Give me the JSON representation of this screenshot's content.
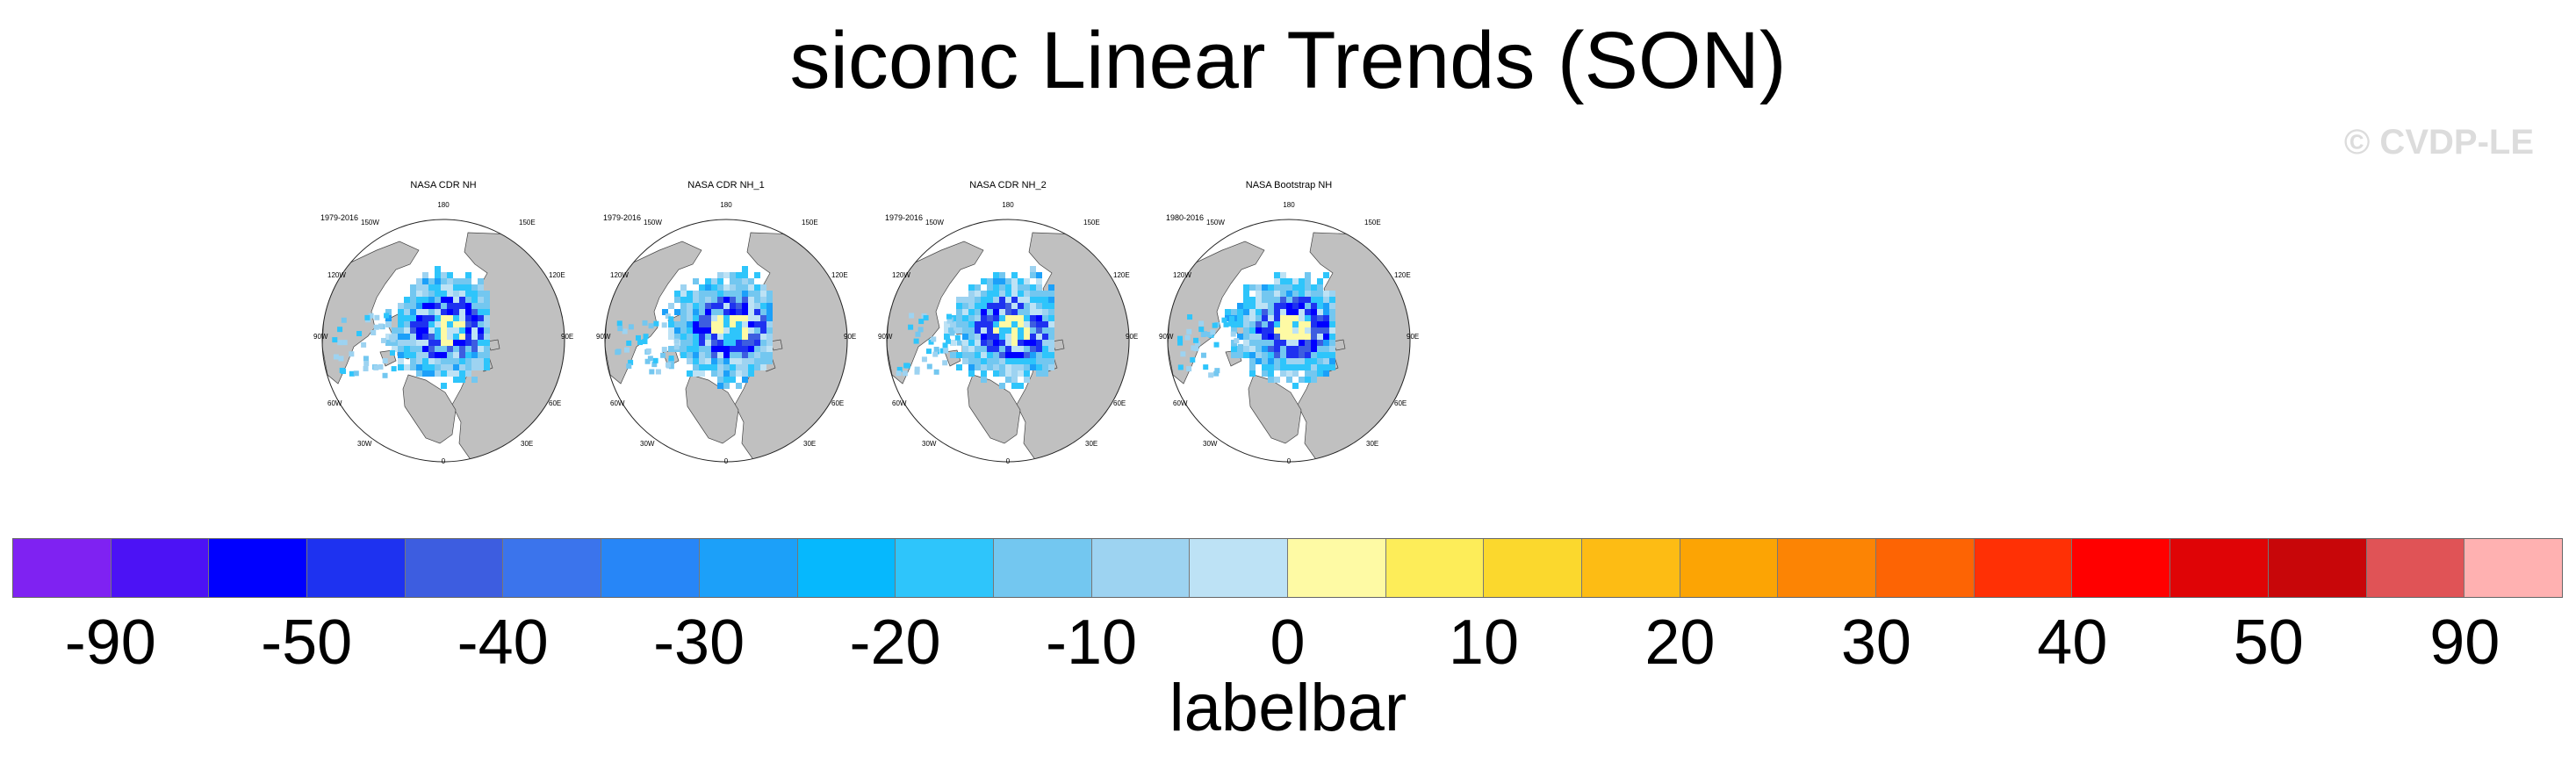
{
  "title": "siconc Linear Trends (SON)",
  "credit": "© CVDP-LE",
  "panels": [
    {
      "title": "NASA CDR NH",
      "years": "1979-2016"
    },
    {
      "title": "NASA CDR NH_1",
      "years": "1979-2016"
    },
    {
      "title": "NASA CDR NH_2",
      "years": "1979-2016"
    },
    {
      "title": "NASA Bootstrap NH",
      "years": "1980-2016"
    }
  ],
  "lon_labels": {
    "top": "180",
    "tl": "150W",
    "tr": "150E",
    "ul": "120W",
    "ur": "120E",
    "ml": "90W",
    "mr": "90E",
    "ll": "60W",
    "lr": "60E",
    "bl": "30W",
    "br": "30E",
    "bottom": "0"
  },
  "colors": {
    "land": "#c0c0c0",
    "ocean": "#ffffff"
  },
  "labelbar": {
    "title": "labelbar",
    "colors": [
      "#7f22f2",
      "#4c12f5",
      "#0000ff",
      "#1e32f0",
      "#3d5de0",
      "#3b74ec",
      "#2786f7",
      "#1ca0f9",
      "#06b8fd",
      "#2ec5fb",
      "#73c7f0",
      "#9dd3f1",
      "#bde2f5",
      "#fefaa4",
      "#fded59",
      "#fbd82d",
      "#fdbc14",
      "#fca404",
      "#fc8404",
      "#fd6404",
      "#ff3005",
      "#ff0000",
      "#df0406",
      "#c80609",
      "#e05356",
      "#ffb1b1"
    ],
    "ticks": [
      "-90",
      "-50",
      "-40",
      "-30",
      "-20",
      "-10",
      "0",
      "10",
      "20",
      "30",
      "40",
      "50",
      "90"
    ]
  }
}
